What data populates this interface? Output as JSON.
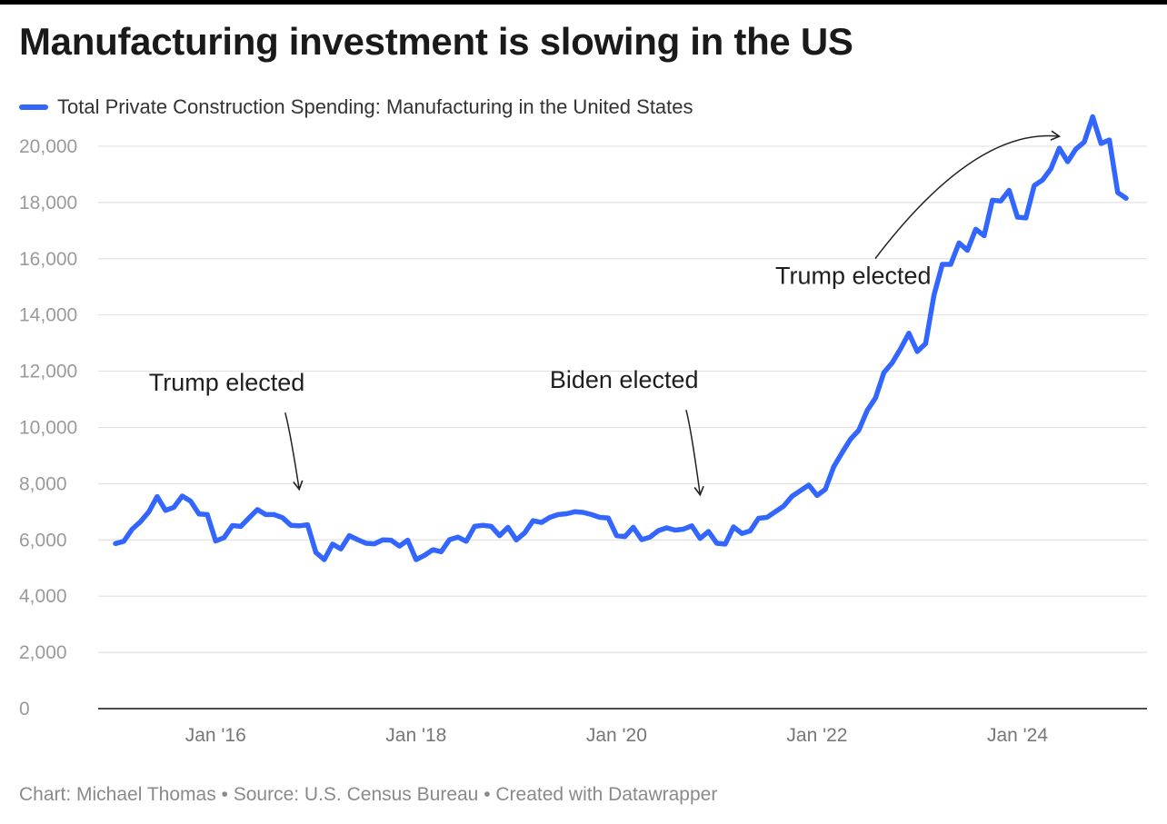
{
  "header": {
    "title": "Manufacturing investment is slowing in the US"
  },
  "legend": {
    "label": "Total Private Construction Spending: Manufacturing in the United States",
    "color": "#3366ff"
  },
  "footer": {
    "credit": "Chart: Michael Thomas • Source: U.S. Census Bureau • Created with Datawrapper"
  },
  "chart_data": {
    "type": "line",
    "title": "Manufacturing investment is slowing in the US",
    "xlabel": "",
    "ylabel": "",
    "ylim": [
      0,
      21000
    ],
    "xlim": [
      "2015-01",
      "2025-03"
    ],
    "grid": true,
    "legend_position": "top-left",
    "y_ticks": [
      {
        "value": 0,
        "label": "0"
      },
      {
        "value": 2000,
        "label": "2,000"
      },
      {
        "value": 4000,
        "label": "4,000"
      },
      {
        "value": 6000,
        "label": "6,000"
      },
      {
        "value": 8000,
        "label": "8,000"
      },
      {
        "value": 10000,
        "label": "10,000"
      },
      {
        "value": 12000,
        "label": "12,000"
      },
      {
        "value": 14000,
        "label": "14,000"
      },
      {
        "value": 16000,
        "label": "16,000"
      },
      {
        "value": 18000,
        "label": "18,000"
      },
      {
        "value": 20000,
        "label": "20,000"
      }
    ],
    "x_ticks": [
      {
        "value": "2016-01",
        "label": "Jan '16"
      },
      {
        "value": "2018-01",
        "label": "Jan '18"
      },
      {
        "value": "2020-01",
        "label": "Jan '20"
      },
      {
        "value": "2022-01",
        "label": "Jan '22"
      },
      {
        "value": "2024-01",
        "label": "Jan '24"
      }
    ],
    "series": [
      {
        "name": "Total Private Construction Spending: Manufacturing in the United States",
        "color": "#3366ff",
        "points": [
          [
            "2015-01",
            5870
          ],
          [
            "2015-02",
            5950
          ],
          [
            "2015-03",
            6380
          ],
          [
            "2015-04",
            6650
          ],
          [
            "2015-05",
            7000
          ],
          [
            "2015-06",
            7540
          ],
          [
            "2015-07",
            7050
          ],
          [
            "2015-08",
            7160
          ],
          [
            "2015-09",
            7560
          ],
          [
            "2015-10",
            7380
          ],
          [
            "2015-11",
            6920
          ],
          [
            "2015-12",
            6900
          ],
          [
            "2016-01",
            5960
          ],
          [
            "2016-02",
            6080
          ],
          [
            "2016-03",
            6510
          ],
          [
            "2016-04",
            6480
          ],
          [
            "2016-05",
            6780
          ],
          [
            "2016-06",
            7080
          ],
          [
            "2016-07",
            6900
          ],
          [
            "2016-08",
            6900
          ],
          [
            "2016-09",
            6790
          ],
          [
            "2016-10",
            6520
          ],
          [
            "2016-11",
            6500
          ],
          [
            "2016-12",
            6540
          ],
          [
            "2017-01",
            5550
          ],
          [
            "2017-02",
            5300
          ],
          [
            "2017-03",
            5850
          ],
          [
            "2017-04",
            5680
          ],
          [
            "2017-05",
            6150
          ],
          [
            "2017-06",
            6010
          ],
          [
            "2017-07",
            5880
          ],
          [
            "2017-08",
            5860
          ],
          [
            "2017-09",
            6000
          ],
          [
            "2017-10",
            5990
          ],
          [
            "2017-11",
            5780
          ],
          [
            "2017-12",
            5990
          ],
          [
            "2018-01",
            5300
          ],
          [
            "2018-02",
            5450
          ],
          [
            "2018-03",
            5650
          ],
          [
            "2018-04",
            5580
          ],
          [
            "2018-05",
            6010
          ],
          [
            "2018-06",
            6100
          ],
          [
            "2018-07",
            5950
          ],
          [
            "2018-08",
            6480
          ],
          [
            "2018-09",
            6520
          ],
          [
            "2018-10",
            6480
          ],
          [
            "2018-11",
            6150
          ],
          [
            "2018-12",
            6450
          ],
          [
            "2019-01",
            6000
          ],
          [
            "2019-02",
            6250
          ],
          [
            "2019-03",
            6680
          ],
          [
            "2019-04",
            6620
          ],
          [
            "2019-05",
            6800
          ],
          [
            "2019-06",
            6900
          ],
          [
            "2019-07",
            6930
          ],
          [
            "2019-08",
            7000
          ],
          [
            "2019-09",
            6980
          ],
          [
            "2019-10",
            6900
          ],
          [
            "2019-11",
            6800
          ],
          [
            "2019-12",
            6780
          ],
          [
            "2020-01",
            6150
          ],
          [
            "2020-02",
            6120
          ],
          [
            "2020-03",
            6450
          ],
          [
            "2020-04",
            6010
          ],
          [
            "2020-05",
            6100
          ],
          [
            "2020-06",
            6330
          ],
          [
            "2020-07",
            6430
          ],
          [
            "2020-08",
            6350
          ],
          [
            "2020-09",
            6380
          ],
          [
            "2020-10",
            6500
          ],
          [
            "2020-11",
            6050
          ],
          [
            "2020-12",
            6300
          ],
          [
            "2021-01",
            5880
          ],
          [
            "2021-02",
            5850
          ],
          [
            "2021-03",
            6460
          ],
          [
            "2021-04",
            6230
          ],
          [
            "2021-05",
            6320
          ],
          [
            "2021-06",
            6770
          ],
          [
            "2021-07",
            6800
          ],
          [
            "2021-08",
            7000
          ],
          [
            "2021-09",
            7200
          ],
          [
            "2021-10",
            7550
          ],
          [
            "2021-11",
            7750
          ],
          [
            "2021-12",
            7950
          ],
          [
            "2022-01",
            7580
          ],
          [
            "2022-02",
            7800
          ],
          [
            "2022-03",
            8600
          ],
          [
            "2022-04",
            9100
          ],
          [
            "2022-05",
            9580
          ],
          [
            "2022-06",
            9900
          ],
          [
            "2022-07",
            10600
          ],
          [
            "2022-08",
            11050
          ],
          [
            "2022-09",
            11950
          ],
          [
            "2022-10",
            12300
          ],
          [
            "2022-11",
            12800
          ],
          [
            "2022-12",
            13350
          ],
          [
            "2023-01",
            12700
          ],
          [
            "2023-02",
            12980
          ],
          [
            "2023-03",
            14700
          ],
          [
            "2023-04",
            15800
          ],
          [
            "2023-05",
            15800
          ],
          [
            "2023-06",
            16560
          ],
          [
            "2023-07",
            16300
          ],
          [
            "2023-08",
            17050
          ],
          [
            "2023-09",
            16820
          ],
          [
            "2023-10",
            18080
          ],
          [
            "2023-11",
            18050
          ],
          [
            "2023-12",
            18430
          ],
          [
            "2024-01",
            17480
          ],
          [
            "2024-02",
            17450
          ],
          [
            "2024-03",
            18600
          ],
          [
            "2024-04",
            18800
          ],
          [
            "2024-05",
            19200
          ],
          [
            "2024-06",
            19930
          ],
          [
            "2024-07",
            19450
          ],
          [
            "2024-08",
            19900
          ],
          [
            "2024-09",
            20150
          ],
          [
            "2024-10",
            21050
          ],
          [
            "2024-11",
            20100
          ],
          [
            "2024-12",
            20220
          ],
          [
            "2025-01",
            18350
          ],
          [
            "2025-02",
            18150
          ]
        ]
      }
    ],
    "annotations": [
      {
        "text": "Trump elected",
        "target": [
          "2016-11",
          7800
        ],
        "label_anchor": [
          "2015-05",
          11300
        ],
        "curve": "down"
      },
      {
        "text": "Biden elected",
        "target": [
          "2020-11",
          7600
        ],
        "label_anchor": [
          "2019-05",
          11400
        ],
        "curve": "down"
      },
      {
        "text": "Trump elected",
        "target": [
          "2024-06",
          20350
        ],
        "label_anchor": [
          "2021-08",
          15100
        ],
        "curve": "up"
      }
    ]
  }
}
